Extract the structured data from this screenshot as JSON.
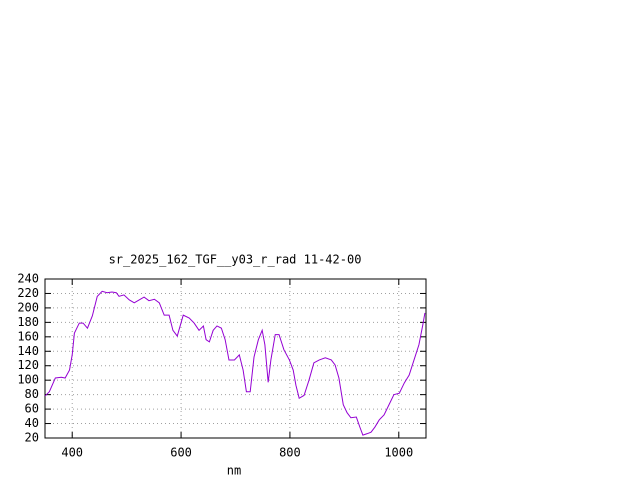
{
  "chart_data": {
    "type": "line",
    "title": "sr_2025_162_TGF__y03_r_rad 11-42-00",
    "x_label": "nm",
    "xlim": [
      350,
      1050
    ],
    "xticks": [
      400,
      600,
      800,
      1000
    ],
    "ylim": [
      20,
      240
    ],
    "yticks": [
      20,
      40,
      60,
      80,
      100,
      120,
      140,
      160,
      180,
      200,
      220,
      240
    ],
    "grid": true,
    "series": [
      {
        "color": "#9400d3",
        "x": [
          350,
          358,
          369,
          380,
          387,
          395,
          400,
          404,
          413,
          420,
          428,
          437,
          446,
          455,
          464,
          473,
          481,
          486,
          495,
          505,
          514,
          523,
          532,
          541,
          551,
          560,
          569,
          578,
          585,
          593,
          596,
          604,
          615,
          624,
          633,
          641,
          646,
          652,
          659,
          666,
          674,
          681,
          688,
          698,
          707,
          714,
          720,
          727,
          734,
          742,
          749,
          754,
          760,
          765,
          773,
          780,
          789,
          799,
          806,
          811,
          817,
          826,
          835,
          844,
          854,
          865,
          876,
          883,
          890,
          898,
          905,
          912,
          922,
          929,
          934,
          942,
          949,
          956,
          964,
          973,
          982,
          991,
          1001,
          1010,
          1019,
          1028,
          1037,
          1044,
          1048
        ],
        "values": [
          78,
          84,
          103,
          104,
          103,
          114,
          135,
          165,
          179,
          179,
          172,
          189,
          216,
          223,
          221,
          222,
          221,
          216,
          218,
          211,
          207,
          211,
          215,
          210,
          212,
          207,
          190,
          190,
          169,
          161,
          169,
          190,
          186,
          179,
          169,
          175,
          156,
          153,
          169,
          175,
          172,
          156,
          128,
          128,
          135,
          114,
          84,
          84,
          132,
          156,
          169,
          149,
          97,
          128,
          163,
          163,
          142,
          128,
          114,
          93,
          75,
          79,
          100,
          124,
          128,
          131,
          128,
          121,
          103,
          66,
          55,
          48,
          49,
          34,
          24,
          26,
          28,
          35,
          45,
          52,
          66,
          80,
          82,
          96,
          107,
          128,
          149,
          176,
          193
        ]
      }
    ]
  }
}
